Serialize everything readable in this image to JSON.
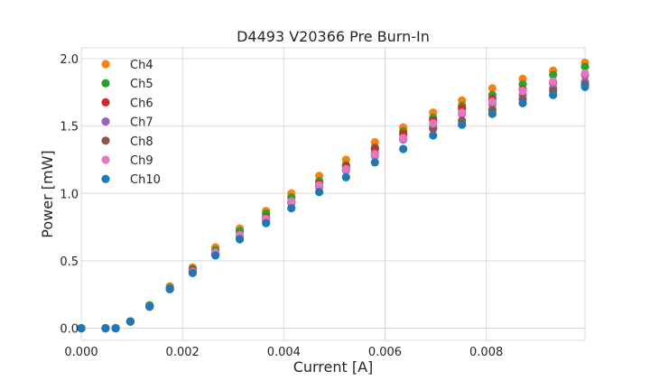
{
  "chart_data": {
    "type": "scatter",
    "title": "D4493 V20366 Pre Burn-In",
    "xlabel": "Current [A]",
    "ylabel": "Power [mW]",
    "xlim": [
      0,
      0.00995
    ],
    "ylim": [
      -0.09,
      2.08
    ],
    "xticks": [
      0,
      0.002,
      0.004,
      0.006,
      0.008
    ],
    "xtick_labels": [
      "0.000",
      "0.002",
      "0.004",
      "0.006",
      "0.008"
    ],
    "yticks": [
      0,
      0.5,
      1.0,
      1.5,
      2.0
    ],
    "ytick_labels": [
      "0.0",
      "0.5",
      "1.0",
      "1.5",
      "2.0"
    ],
    "grid": true,
    "legend_position": "top-left",
    "x": [
      0,
      0.00048,
      0.00068,
      0.00097,
      0.00135,
      0.00175,
      0.0022,
      0.00265,
      0.00313,
      0.00365,
      0.00415,
      0.0047,
      0.00523,
      0.0058,
      0.00636,
      0.00695,
      0.00752,
      0.00812,
      0.00872,
      0.00932,
      0.00995
    ],
    "series": [
      {
        "name": "Ch4",
        "color": "#ff7f0e",
        "values": [
          0,
          0,
          0,
          0.05,
          0.17,
          0.31,
          0.45,
          0.6,
          0.74,
          0.87,
          1.0,
          1.13,
          1.25,
          1.38,
          1.49,
          1.6,
          1.69,
          1.78,
          1.85,
          1.91,
          1.97
        ]
      },
      {
        "name": "Ch5",
        "color": "#2ca02c",
        "values": [
          0,
          0,
          0,
          0.05,
          0.17,
          0.3,
          0.44,
          0.58,
          0.72,
          0.85,
          0.97,
          1.09,
          1.21,
          1.34,
          1.46,
          1.56,
          1.65,
          1.73,
          1.81,
          1.88,
          1.94
        ]
      },
      {
        "name": "Ch6",
        "color": "#d62728",
        "values": [
          0,
          0,
          0,
          0.05,
          0.16,
          0.29,
          0.43,
          0.56,
          0.69,
          0.82,
          0.94,
          1.07,
          1.2,
          1.33,
          1.44,
          1.54,
          1.63,
          1.7,
          1.77,
          1.82,
          1.88
        ]
      },
      {
        "name": "Ch7",
        "color": "#9467bd",
        "values": [
          0,
          0,
          0,
          0.05,
          0.16,
          0.29,
          0.42,
          0.56,
          0.69,
          0.81,
          0.94,
          1.06,
          1.17,
          1.28,
          1.4,
          1.5,
          1.59,
          1.66,
          1.73,
          1.78,
          1.83
        ]
      },
      {
        "name": "Ch8",
        "color": "#8c564b",
        "values": [
          0,
          0,
          0,
          0.05,
          0.16,
          0.29,
          0.42,
          0.55,
          0.68,
          0.8,
          0.93,
          1.05,
          1.18,
          1.3,
          1.41,
          1.48,
          1.54,
          1.62,
          1.7,
          1.76,
          1.81
        ]
      },
      {
        "name": "Ch9",
        "color": "#e377c2",
        "values": [
          0,
          0,
          0,
          0.05,
          0.16,
          0.29,
          0.42,
          0.56,
          0.69,
          0.81,
          0.94,
          1.06,
          1.18,
          1.29,
          1.41,
          1.52,
          1.6,
          1.68,
          1.76,
          1.83,
          1.89
        ]
      },
      {
        "name": "Ch10",
        "color": "#1f77b4",
        "values": [
          0,
          0,
          0,
          0.05,
          0.16,
          0.29,
          0.41,
          0.54,
          0.66,
          0.78,
          0.89,
          1.01,
          1.12,
          1.23,
          1.33,
          1.43,
          1.51,
          1.59,
          1.67,
          1.73,
          1.79
        ]
      }
    ]
  }
}
